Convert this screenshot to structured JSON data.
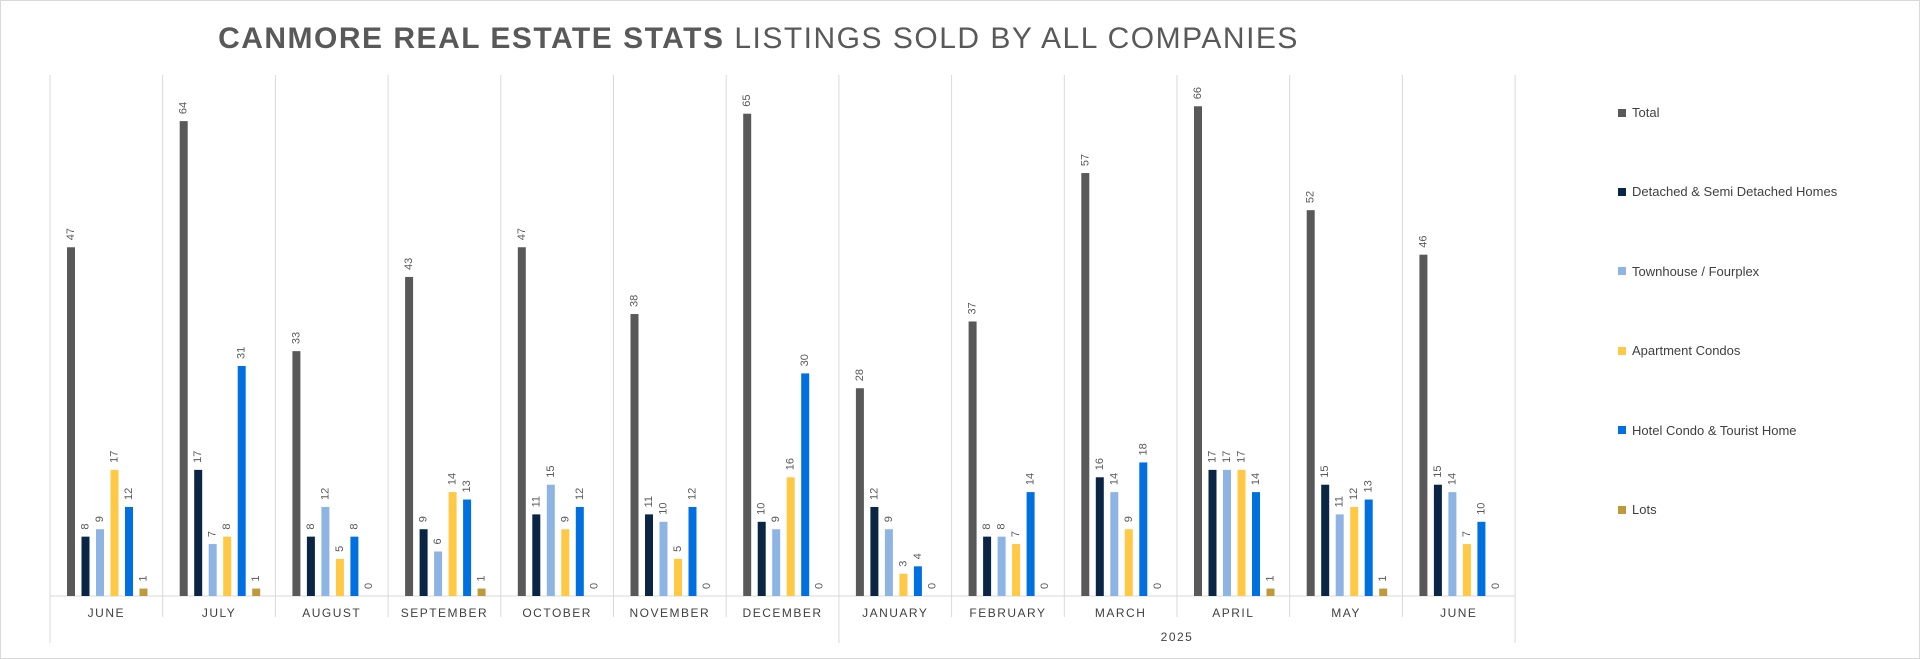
{
  "title": {
    "bold": "CANMORE REAL ESTATE STATS",
    "rest": "LISTINGS SOLD BY ALL COMPANIES"
  },
  "chart_data": {
    "type": "bar",
    "categories": [
      "JUNE",
      "JULY",
      "AUGUST",
      "SEPTEMBER",
      "OCTOBER",
      "NOVEMBER",
      "DECEMBER",
      "JANUARY",
      "FEBRUARY",
      "MARCH",
      "APRIL",
      "MAY",
      "JUNE"
    ],
    "group_label": "2025",
    "group_start_index": 7,
    "ylim": [
      0,
      70
    ],
    "grid": false,
    "legend_position": "right",
    "series": [
      {
        "name": "Total",
        "color": "#595959",
        "values": [
          47,
          64,
          33,
          43,
          47,
          38,
          65,
          28,
          37,
          57,
          66,
          52,
          46
        ]
      },
      {
        "name": "Detached & Semi Detached Homes",
        "color": "#0b2545",
        "values": [
          8,
          17,
          8,
          9,
          11,
          11,
          10,
          12,
          8,
          16,
          17,
          15,
          15
        ]
      },
      {
        "name": "Townhouse / Fourplex",
        "color": "#8eb4e3",
        "values": [
          9,
          7,
          12,
          6,
          15,
          10,
          9,
          9,
          8,
          14,
          17,
          11,
          14
        ]
      },
      {
        "name": "Apartment Condos",
        "color": "#ffc845",
        "values": [
          17,
          8,
          5,
          14,
          9,
          5,
          16,
          3,
          7,
          9,
          17,
          12,
          7
        ]
      },
      {
        "name": "Hotel Condo & Tourist Home",
        "color": "#0070e0",
        "values": [
          12,
          31,
          8,
          13,
          12,
          12,
          30,
          4,
          14,
          18,
          14,
          13,
          10
        ]
      },
      {
        "name": "Lots",
        "color": "#c09a3a",
        "values": [
          1,
          1,
          0,
          1,
          0,
          0,
          0,
          0,
          0,
          0,
          1,
          1,
          0
        ]
      }
    ]
  }
}
